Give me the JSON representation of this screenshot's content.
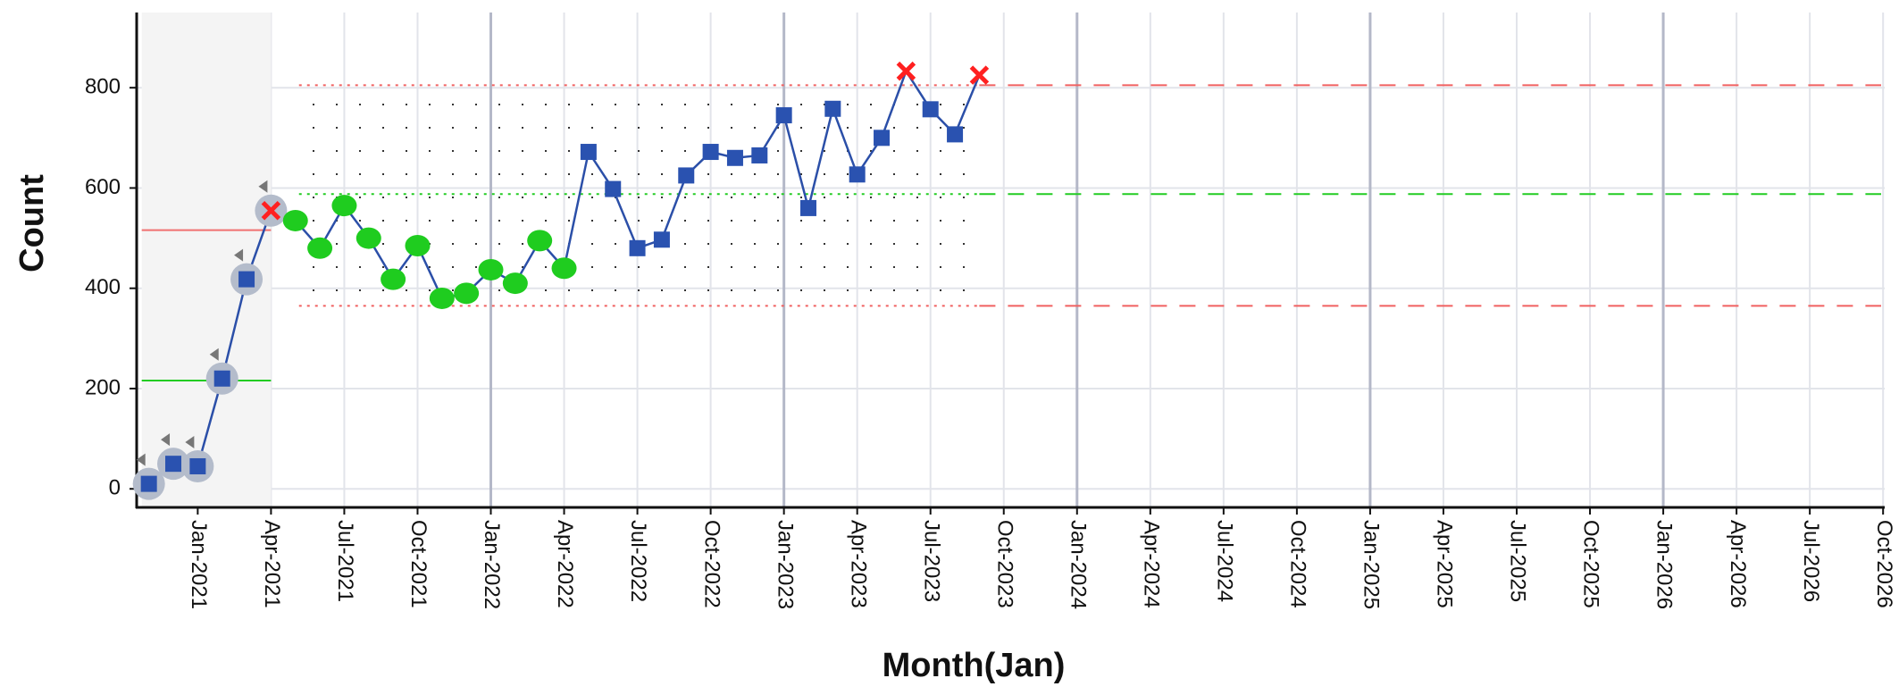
{
  "chart_data": {
    "type": "control",
    "x_label": "Month(Jan)",
    "y_label": "Count",
    "ylim": [
      -37,
      950
    ],
    "yticks": [
      0,
      200,
      400,
      600,
      800
    ],
    "xlim": [
      "2020-10-16",
      "2026-10-03"
    ],
    "xticks": [
      {
        "value": "2021-01",
        "label": "Jan-2021"
      },
      {
        "value": "2021-04",
        "label": "Apr-2021"
      },
      {
        "value": "2021-07",
        "label": "Jul-2021"
      },
      {
        "value": "2021-10",
        "label": "Oct-2021"
      },
      {
        "value": "2022-01",
        "label": "Jan-2022"
      },
      {
        "value": "2022-04",
        "label": "Apr-2022"
      },
      {
        "value": "2022-07",
        "label": "Jul-2022"
      },
      {
        "value": "2022-10",
        "label": "Oct-2022"
      },
      {
        "value": "2023-01",
        "label": "Jan-2023"
      },
      {
        "value": "2023-04",
        "label": "Apr-2023"
      },
      {
        "value": "2023-07",
        "label": "Jul-2023"
      },
      {
        "value": "2023-10",
        "label": "Oct-2023"
      },
      {
        "value": "2024-01",
        "label": "Jan-2024"
      },
      {
        "value": "2024-04",
        "label": "Apr-2024"
      },
      {
        "value": "2024-07",
        "label": "Jul-2024"
      },
      {
        "value": "2024-10",
        "label": "Oct-2024"
      },
      {
        "value": "2025-01",
        "label": "Jan-2025"
      },
      {
        "value": "2025-04",
        "label": "Apr-2025"
      },
      {
        "value": "2025-07",
        "label": "Jul-2025"
      },
      {
        "value": "2025-10",
        "label": "Oct-2025"
      },
      {
        "value": "2026-01",
        "label": "Jan-2026"
      },
      {
        "value": "2026-04",
        "label": "Apr-2026"
      },
      {
        "value": "2026-07",
        "label": "Jul-2026"
      },
      {
        "value": "2026-10",
        "label": "Oct-2026"
      }
    ],
    "grid": true,
    "series": [
      {
        "color": "#2b4fa8",
        "x": [
          "2020-11",
          "2020-12",
          "2021-01",
          "2021-02",
          "2021-03",
          "2021-04",
          "2021-05",
          "2021-06",
          "2021-07",
          "2021-08",
          "2021-09",
          "2021-10",
          "2021-11",
          "2021-12",
          "2022-01",
          "2022-02",
          "2022-03",
          "2022-04",
          "2022-05",
          "2022-06",
          "2022-07",
          "2022-08",
          "2022-09",
          "2022-10",
          "2022-11",
          "2022-12",
          "2023-01",
          "2023-02",
          "2023-03",
          "2023-04",
          "2023-05",
          "2023-06",
          "2023-07",
          "2023-08",
          "2023-09"
        ],
        "values": [
          10,
          50,
          45,
          220,
          418,
          555,
          535,
          480,
          565,
          500,
          418,
          485,
          380,
          390,
          437,
          410,
          495,
          440,
          672,
          598,
          480,
          497,
          625,
          672,
          660,
          665,
          745,
          560,
          758,
          627,
          700,
          833,
          757,
          707,
          825
        ],
        "markers": [
          "halo",
          "halo",
          "halo",
          "halo",
          "halo",
          "cross",
          "circle",
          "circle",
          "circle",
          "circle",
          "circle",
          "circle",
          "circle",
          "circle",
          "circle",
          "circle",
          "circle",
          "circle",
          "square",
          "square",
          "square",
          "square",
          "square",
          "square",
          "square",
          "square",
          "square",
          "square",
          "square",
          "square",
          "square",
          "cross",
          "square",
          "square",
          "cross"
        ]
      }
    ],
    "marker_colors": {
      "square": "#2a52b0",
      "circle": "#1fcc1f",
      "cross": "#ff2020",
      "halo": "#b4bccb"
    },
    "phases": [
      {
        "from": "2020-11",
        "to": "2021-04",
        "center": 216,
        "ucl": 516
      },
      {
        "from": "2021-05",
        "to": "2026-10",
        "center": 588,
        "ucl": 805,
        "lcl": 365
      }
    ]
  }
}
